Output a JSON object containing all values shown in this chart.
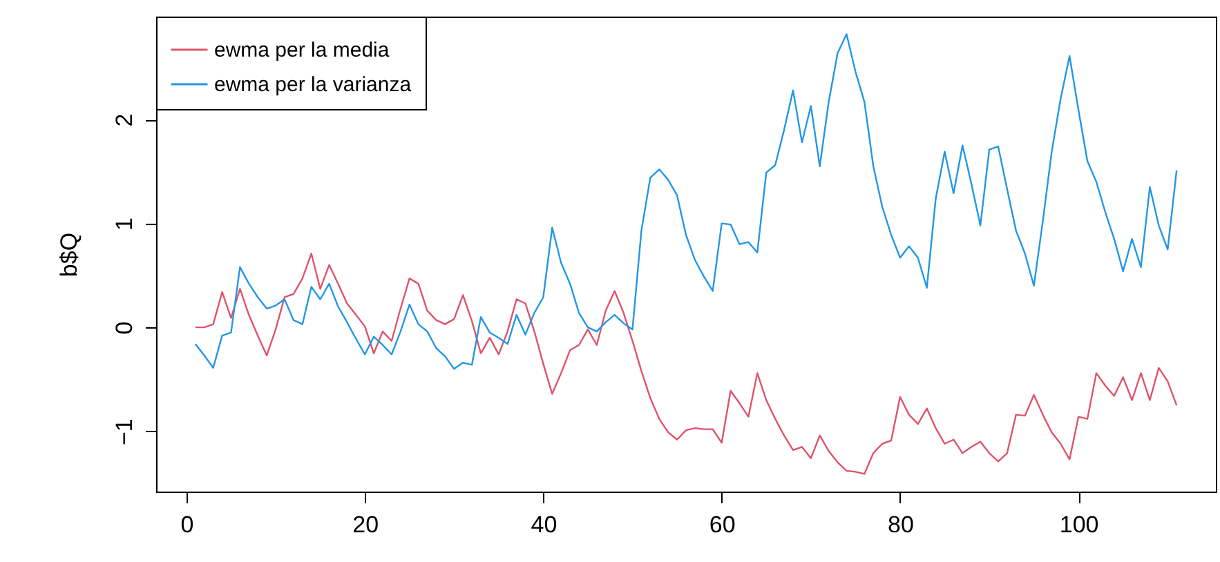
{
  "chart_data": {
    "type": "line",
    "ylabel": "b$Q",
    "x": [
      1,
      2,
      3,
      4,
      5,
      6,
      7,
      8,
      9,
      10,
      11,
      12,
      13,
      14,
      15,
      16,
      17,
      18,
      19,
      20,
      21,
      22,
      23,
      24,
      25,
      26,
      27,
      28,
      29,
      30,
      31,
      32,
      33,
      34,
      35,
      36,
      37,
      38,
      39,
      40,
      41,
      42,
      43,
      44,
      45,
      46,
      47,
      48,
      49,
      50,
      51,
      52,
      53,
      54,
      55,
      56,
      57,
      58,
      59,
      60,
      61,
      62,
      63,
      64,
      65,
      66,
      67,
      68,
      69,
      70,
      71,
      72,
      73,
      74,
      75,
      76,
      77,
      78,
      79,
      80,
      81,
      82,
      83,
      84,
      85,
      86,
      87,
      88,
      89,
      90,
      91,
      92,
      93,
      94,
      95,
      96,
      97,
      98,
      99,
      100,
      101,
      102,
      103,
      104,
      105,
      106,
      107,
      108,
      109,
      110,
      111
    ],
    "series": [
      {
        "name": "ewma per la media",
        "color": "#df536b",
        "values": [
          0,
          0,
          0.03,
          0.34,
          0.09,
          0.37,
          0.12,
          -0.08,
          -0.27,
          -0.02,
          0.29,
          0.32,
          0.47,
          0.71,
          0.37,
          0.6,
          0.42,
          0.23,
          0.12,
          0.01,
          -0.25,
          -0.04,
          -0.13,
          0.18,
          0.47,
          0.42,
          0.16,
          0.07,
          0.03,
          0.08,
          0.31,
          0.06,
          -0.25,
          -0.1,
          -0.26,
          -0.04,
          0.27,
          0.23,
          -0.04,
          -0.35,
          -0.64,
          -0.44,
          -0.22,
          -0.17,
          -0.02,
          -0.17,
          0.16,
          0.35,
          0.14,
          -0.13,
          -0.42,
          -0.68,
          -0.88,
          -1.01,
          -1.08,
          -0.99,
          -0.97,
          -0.98,
          -0.98,
          -1.11,
          -0.61,
          -0.73,
          -0.86,
          -0.44,
          -0.7,
          -0.88,
          -1.04,
          -1.18,
          -1.15,
          -1.26,
          -1.04,
          -1.19,
          -1.3,
          -1.38,
          -1.39,
          -1.41,
          -1.21,
          -1.12,
          -1.09,
          -0.67,
          -0.84,
          -0.93,
          -0.78,
          -0.97,
          -1.12,
          -1.08,
          -1.21,
          -1.15,
          -1.1,
          -1.21,
          -1.29,
          -1.21,
          -0.84,
          -0.85,
          -0.65,
          -0.84,
          -1.01,
          -1.12,
          -1.27,
          -0.86,
          -0.88,
          -0.44,
          -0.56,
          -0.66,
          -0.48,
          -0.7,
          -0.44,
          -0.7,
          -0.39,
          -0.52,
          -0.75
        ]
      },
      {
        "name": "ewma per la varianza",
        "color": "#2297e6",
        "values": [
          -0.16,
          -0.27,
          -0.39,
          -0.08,
          -0.05,
          0.58,
          0.42,
          0.29,
          0.18,
          0.21,
          0.27,
          0.07,
          0.03,
          0.39,
          0.27,
          0.42,
          0.2,
          0.05,
          -0.11,
          -0.26,
          -0.09,
          -0.17,
          -0.26,
          -0.04,
          0.22,
          0.03,
          -0.04,
          -0.2,
          -0.28,
          -0.4,
          -0.34,
          -0.36,
          0.1,
          -0.05,
          -0.1,
          -0.16,
          0.12,
          -0.07,
          0.14,
          0.29,
          0.96,
          0.62,
          0.42,
          0.14,
          0,
          -0.04,
          0.05,
          0.12,
          0.04,
          -0.02,
          0.93,
          1.44,
          1.52,
          1.42,
          1.27,
          0.89,
          0.65,
          0.49,
          0.35,
          1,
          0.99,
          0.8,
          0.82,
          0.72,
          1.49,
          1.56,
          1.9,
          2.28,
          1.78,
          2.13,
          1.55,
          2.17,
          2.64,
          2.82,
          2.46,
          2.17,
          1.55,
          1.16,
          0.89,
          0.67,
          0.78,
          0.67,
          0.38,
          1.24,
          1.69,
          1.29,
          1.75,
          1.38,
          0.98,
          1.71,
          1.74,
          1.33,
          0.93,
          0.71,
          0.4,
          1.02,
          1.69,
          2.2,
          2.61,
          2.09,
          1.6,
          1.4,
          1.11,
          0.85,
          0.54,
          0.85,
          0.58,
          1.35,
          0.98,
          0.75,
          1.51
        ]
      }
    ],
    "xlim": [
      -3.4,
      115.4
    ],
    "xticks": [
      0,
      20,
      40,
      60,
      80,
      100
    ],
    "ylim": [
      -1.58,
      2.99
    ],
    "yticks": [
      -1,
      0,
      1,
      2
    ],
    "grid": false,
    "legend": "top left",
    "marker": "none",
    "line_style": "solid"
  }
}
